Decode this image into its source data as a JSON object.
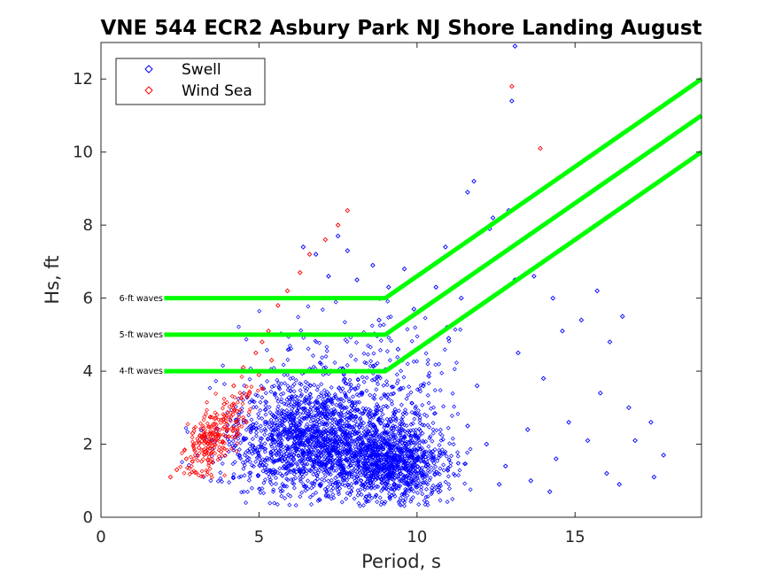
{
  "chart_data": {
    "type": "scatter",
    "title": "VNE 544 ECR2 Asbury Park NJ Shore Landing August",
    "xlabel": "Period, s",
    "ylabel": "Hs, ft",
    "xlim": [
      0,
      19
    ],
    "ylim": [
      0,
      13
    ],
    "xticks": [
      0,
      5,
      10,
      15
    ],
    "yticks": [
      0,
      2,
      4,
      6,
      8,
      10,
      12
    ],
    "xtick_labels": [
      "0",
      "5",
      "10",
      "15"
    ],
    "ytick_labels": [
      "0",
      "2",
      "4",
      "6",
      "8",
      "10",
      "12"
    ],
    "grid": false,
    "legend_position": "top-left",
    "series": [
      {
        "name": "Swell",
        "marker": "diamond",
        "color": "#0000ff",
        "points": [
          [
            13.1,
            12.9
          ],
          [
            13.0,
            11.4
          ],
          [
            11.8,
            9.2
          ],
          [
            11.6,
            8.9
          ],
          [
            12.4,
            8.2
          ],
          [
            10.9,
            7.4
          ],
          [
            12.3,
            7.9
          ],
          [
            7.5,
            7.7
          ],
          [
            7.8,
            7.3
          ],
          [
            6.8,
            7.2
          ],
          [
            12.9,
            8.4
          ],
          [
            13.1,
            6.5
          ],
          [
            13.7,
            6.6
          ],
          [
            14.3,
            6.0
          ],
          [
            15.2,
            5.4
          ],
          [
            16.1,
            4.8
          ],
          [
            16.5,
            5.5
          ],
          [
            15.7,
            6.2
          ],
          [
            14.6,
            5.1
          ],
          [
            13.2,
            4.5
          ],
          [
            14.0,
            3.8
          ],
          [
            15.8,
            3.4
          ],
          [
            16.7,
            3.0
          ],
          [
            17.4,
            2.6
          ],
          [
            17.8,
            1.7
          ],
          [
            17.5,
            1.1
          ],
          [
            16.4,
            0.9
          ],
          [
            16.0,
            1.2
          ],
          [
            14.8,
            2.6
          ],
          [
            13.5,
            2.4
          ],
          [
            12.8,
            1.4
          ],
          [
            12.6,
            0.9
          ],
          [
            13.6,
            1.0
          ],
          [
            14.2,
            0.7
          ],
          [
            11.9,
            3.6
          ],
          [
            11.0,
            4.9
          ],
          [
            9.6,
            6.8
          ],
          [
            9.1,
            6.3
          ],
          [
            8.6,
            6.9
          ],
          [
            8.1,
            6.5
          ],
          [
            7.2,
            6.6
          ],
          [
            6.4,
            7.4
          ],
          [
            9.9,
            5.7
          ],
          [
            10.6,
            6.3
          ],
          [
            11.4,
            6.0
          ],
          [
            10.2,
            3.6
          ],
          [
            9.4,
            4.6
          ],
          [
            8.8,
            5.4
          ],
          [
            16.9,
            2.1
          ],
          [
            15.4,
            2.1
          ],
          [
            14.4,
            1.6
          ],
          [
            11.6,
            2.5
          ],
          [
            12.2,
            2.0
          ],
          [
            10.5,
            1.8
          ]
        ]
      },
      {
        "name": "Wind Sea",
        "marker": "diamond",
        "color": "#ff0000",
        "points": [
          [
            13.0,
            11.8
          ],
          [
            13.9,
            10.1
          ],
          [
            7.8,
            8.4
          ],
          [
            7.5,
            8.0
          ],
          [
            7.1,
            7.6
          ],
          [
            6.6,
            7.2
          ],
          [
            6.3,
            6.7
          ],
          [
            5.9,
            6.2
          ],
          [
            5.6,
            5.8
          ],
          [
            5.3,
            5.1
          ],
          [
            5.1,
            4.8
          ],
          [
            4.9,
            4.5
          ],
          [
            4.5,
            4.1
          ],
          [
            4.2,
            3.6
          ],
          [
            3.9,
            3.1
          ],
          [
            3.6,
            2.7
          ],
          [
            3.3,
            2.2
          ],
          [
            3.1,
            1.9
          ],
          [
            2.7,
            1.6
          ],
          [
            2.4,
            1.3
          ],
          [
            2.2,
            1.1
          ],
          [
            3.5,
            2.1
          ],
          [
            4.0,
            2.4
          ],
          [
            4.3,
            2.9
          ],
          [
            4.7,
            3.4
          ],
          [
            5.0,
            3.9
          ],
          [
            3.8,
            1.8
          ],
          [
            2.9,
            2.3
          ],
          [
            4.6,
            2.6
          ],
          [
            5.4,
            4.3
          ]
        ]
      }
    ],
    "limit_lines": [
      {
        "label": "6-ft waves",
        "color": "#00ff00",
        "x": [
          2,
          9,
          19
        ],
        "y": [
          6,
          6,
          12
        ]
      },
      {
        "label": "5-ft waves",
        "color": "#00ff00",
        "x": [
          2,
          9,
          19
        ],
        "y": [
          5,
          5,
          11
        ]
      },
      {
        "label": "4-ft waves",
        "color": "#00ff00",
        "x": [
          2,
          9,
          19
        ],
        "y": [
          4,
          4,
          10
        ]
      }
    ]
  }
}
